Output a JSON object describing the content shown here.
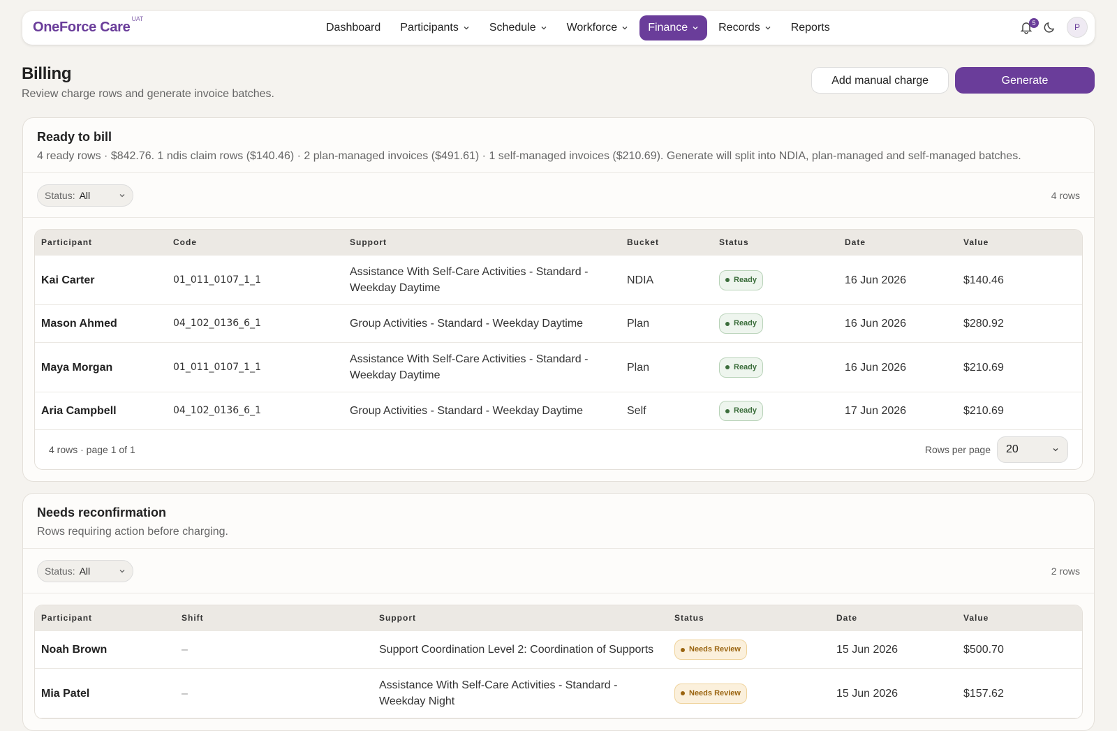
{
  "nav": {
    "brand": "OneForce Care",
    "env": "UAT",
    "items": [
      {
        "label": "Dashboard",
        "menu": false,
        "active": false
      },
      {
        "label": "Participants",
        "menu": true,
        "active": false
      },
      {
        "label": "Schedule",
        "menu": true,
        "active": false
      },
      {
        "label": "Workforce",
        "menu": true,
        "active": false
      },
      {
        "label": "Finance",
        "menu": true,
        "active": true
      },
      {
        "label": "Records",
        "menu": true,
        "active": false
      },
      {
        "label": "Reports",
        "menu": false,
        "active": false
      }
    ],
    "notifications": "5",
    "avatar": "P"
  },
  "header": {
    "title": "Billing",
    "subtitle": "Review charge rows and generate invoice batches.",
    "actions": [
      "Add manual charge",
      "Generate"
    ]
  },
  "sections": [
    {
      "title": "Ready to bill",
      "summary": "4 ready rows · $842.76. 1 ndis claim rows ($140.46) · 2 plan-managed invoices ($491.61) · 1 self-managed invoices ($210.69). Generate will split into NDIA, plan-managed and self-managed batches.",
      "filter": {
        "label": "Status:",
        "value": "All"
      },
      "count": "4 rows",
      "columns": [
        "Participant",
        "Code",
        "Support",
        "Bucket",
        "Status",
        "Date",
        "Value"
      ],
      "rows": [
        [
          "Kai Carter",
          "01_011_0107_1_1",
          "Assistance With Self-Care Activities - Standard - Weekday Daytime",
          "NDIA",
          {
            "text": "Ready",
            "tone": "green"
          },
          "16 Jun 2026",
          "$140.46"
        ],
        [
          "Mason Ahmed",
          "04_102_0136_6_1",
          "Group Activities - Standard - Weekday Daytime",
          "Plan",
          {
            "text": "Ready",
            "tone": "green"
          },
          "16 Jun 2026",
          "$280.92"
        ],
        [
          "Maya Morgan",
          "01_011_0107_1_1",
          "Assistance With Self-Care Activities - Standard - Weekday Daytime",
          "Plan",
          {
            "text": "Ready",
            "tone": "green"
          },
          "16 Jun 2026",
          "$210.69"
        ],
        [
          "Aria Campbell",
          "04_102_0136_6_1",
          "Group Activities - Standard - Weekday Daytime",
          "Self",
          {
            "text": "Ready",
            "tone": "green"
          },
          "17 Jun 2026",
          "$210.69"
        ]
      ],
      "footer": {
        "info": "4 rows · page 1 of 1",
        "rows_per_page_label": "Rows per page",
        "rows_per_page": "20"
      }
    },
    {
      "title": "Needs reconfirmation",
      "summary": "Rows requiring action before charging.",
      "filter": {
        "label": "Status:",
        "value": "All"
      },
      "count": "2 rows",
      "columns": [
        "Participant",
        "Shift",
        "Support",
        "Status",
        "Date",
        "Value"
      ],
      "rows": [
        [
          "Noah Brown",
          "–",
          "Support Coordination Level 2: Coordination of Supports",
          {
            "text": "Needs Review",
            "tone": "amber"
          },
          "15 Jun 2026",
          "$500.70"
        ],
        [
          "Mia Patel",
          "–",
          "Assistance With Self-Care Activities - Standard - Weekday Night",
          {
            "text": "Needs Review",
            "tone": "amber"
          },
          "15 Jun 2026",
          "$157.62"
        ]
      ]
    }
  ]
}
